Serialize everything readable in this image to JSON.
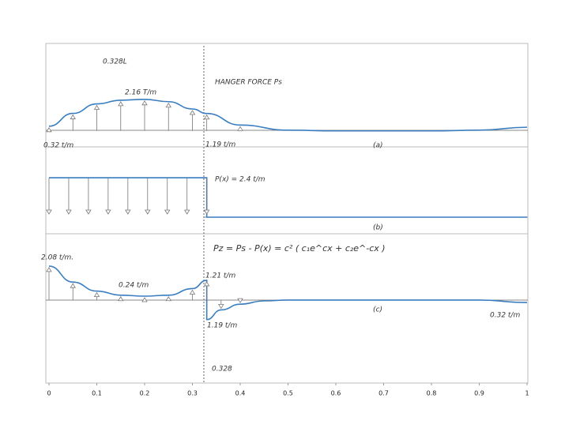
{
  "chart_data": [
    {
      "type": "line",
      "label": "(a)",
      "color": "#3a7dc0",
      "annotations": [
        "0.328L",
        "2.16 T/m",
        "HANGER FORCE Ps",
        "0.32 t/m",
        "1.19 t/m"
      ],
      "x": [
        0,
        0.05,
        0.1,
        0.15,
        0.2,
        0.25,
        0.3,
        0.33,
        0.4,
        0.5,
        0.6,
        0.7,
        0.8,
        0.9,
        1
      ],
      "values": [
        0.32,
        1.2,
        1.85,
        2.1,
        2.16,
        2.0,
        1.5,
        1.19,
        0.4,
        0.05,
        0,
        0,
        0,
        0.05,
        0.25
      ],
      "ylim": [
        -0.5,
        3.5
      ]
    },
    {
      "type": "line",
      "label": "(b)",
      "color": "#3a7dc0",
      "annotations": [
        "P(x) = 2.4 t/m"
      ],
      "x": [
        0,
        0.33,
        0.33,
        1
      ],
      "values": [
        2.4,
        2.4,
        0,
        0
      ],
      "ylim": [
        -0.5,
        3
      ]
    },
    {
      "type": "line",
      "label": "(c)",
      "color": "#3a7dc0",
      "annotations": [
        "Pz = Ps - P(x) = c² ( c₁e^cx + c₂e^-cx )",
        "2.08 t/m.",
        "0.24 t/m",
        "1.21 t/m",
        "1.19 t/m",
        "0.32 t/m",
        "0.328"
      ],
      "x": [
        0,
        0.05,
        0.1,
        0.15,
        0.2,
        0.25,
        0.3,
        0.33,
        0.33,
        0.36,
        0.4,
        0.45,
        0.5,
        0.6,
        0.7,
        0.8,
        0.9,
        1
      ],
      "values": [
        2.08,
        1.1,
        0.55,
        0.3,
        0.24,
        0.3,
        0.7,
        1.21,
        -1.19,
        -0.6,
        -0.25,
        -0.05,
        0,
        0,
        0,
        0,
        0,
        -0.15
      ],
      "ylim": [
        -3,
        3.5
      ],
      "xlim": [
        0,
        1
      ],
      "xticks": [
        0,
        0.1,
        0.2,
        0.3,
        0.4,
        0.5,
        0.6,
        0.7,
        0.8,
        0.9,
        1
      ]
    }
  ]
}
